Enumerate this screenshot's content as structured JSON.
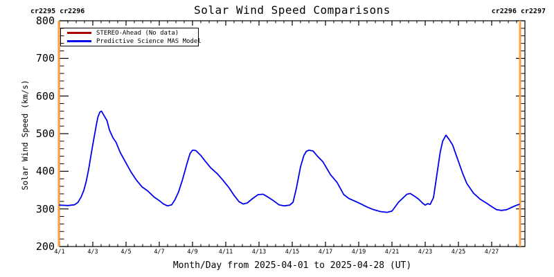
{
  "chart_data": {
    "type": "line",
    "title": "Solar Wind Speed Comparisons",
    "xlabel": "Month/Day from 2025-04-01 to 2025-04-28 (UT)",
    "ylabel": "Solar Wind Speed (km/s)",
    "xlim": [
      1,
      29
    ],
    "ylim": [
      200,
      800
    ],
    "grid": false,
    "legend_position": "top-left",
    "x_minor_step_days": 0.5,
    "y_minor_step": 20,
    "x_ticks": [
      {
        "day": 1,
        "label": "4/1"
      },
      {
        "day": 3,
        "label": "4/3"
      },
      {
        "day": 5,
        "label": "4/5"
      },
      {
        "day": 7,
        "label": "4/7"
      },
      {
        "day": 9,
        "label": "4/9"
      },
      {
        "day": 11,
        "label": "4/11"
      },
      {
        "day": 13,
        "label": "4/13"
      },
      {
        "day": 15,
        "label": "4/15"
      },
      {
        "day": 17,
        "label": "4/17"
      },
      {
        "day": 19,
        "label": "4/19"
      },
      {
        "day": 21,
        "label": "4/21"
      },
      {
        "day": 23,
        "label": "4/23"
      },
      {
        "day": 25,
        "label": "4/25"
      },
      {
        "day": 27,
        "label": "4/27"
      }
    ],
    "y_ticks": [
      {
        "value": 200,
        "label": "200"
      },
      {
        "value": 300,
        "label": "300"
      },
      {
        "value": 400,
        "label": "400"
      },
      {
        "value": 500,
        "label": "500"
      },
      {
        "value": 600,
        "label": "600"
      },
      {
        "value": 700,
        "label": "700"
      },
      {
        "value": 800,
        "label": "800"
      }
    ],
    "annotations": {
      "left_label": "cr2295 cr2296",
      "right_label": "cr2296 cr2297",
      "boundary_days": [
        0.96,
        28.71
      ],
      "boundary_color": "#ffa040"
    },
    "series": [
      {
        "name": "STEREO-Ahead (No data)",
        "color": "#aa0000",
        "points": []
      },
      {
        "name": "Predictive Science MAS Model",
        "color": "#0000ee",
        "points": [
          [
            1.0,
            310
          ],
          [
            1.5,
            309
          ],
          [
            1.9,
            311
          ],
          [
            2.1,
            317
          ],
          [
            2.3,
            332
          ],
          [
            2.45,
            348
          ],
          [
            2.6,
            372
          ],
          [
            2.75,
            405
          ],
          [
            2.9,
            445
          ],
          [
            3.05,
            483
          ],
          [
            3.2,
            520
          ],
          [
            3.3,
            543
          ],
          [
            3.42,
            557
          ],
          [
            3.52,
            560
          ],
          [
            3.65,
            550
          ],
          [
            3.85,
            535
          ],
          [
            4.0,
            510
          ],
          [
            4.2,
            490
          ],
          [
            4.4,
            477
          ],
          [
            4.65,
            450
          ],
          [
            4.95,
            426
          ],
          [
            5.3,
            398
          ],
          [
            5.6,
            378
          ],
          [
            5.95,
            359
          ],
          [
            6.3,
            348
          ],
          [
            6.7,
            331
          ],
          [
            7.0,
            322
          ],
          [
            7.25,
            313
          ],
          [
            7.5,
            308
          ],
          [
            7.75,
            311
          ],
          [
            7.95,
            325
          ],
          [
            8.15,
            344
          ],
          [
            8.4,
            378
          ],
          [
            8.65,
            418
          ],
          [
            8.85,
            447
          ],
          [
            9.0,
            456
          ],
          [
            9.2,
            455
          ],
          [
            9.5,
            442
          ],
          [
            9.8,
            425
          ],
          [
            10.1,
            409
          ],
          [
            10.5,
            393
          ],
          [
            10.8,
            378
          ],
          [
            11.2,
            356
          ],
          [
            11.5,
            336
          ],
          [
            11.8,
            319
          ],
          [
            12.05,
            313
          ],
          [
            12.3,
            316
          ],
          [
            12.6,
            327
          ],
          [
            12.95,
            338
          ],
          [
            13.25,
            339
          ],
          [
            13.55,
            331
          ],
          [
            13.9,
            321
          ],
          [
            14.2,
            311
          ],
          [
            14.5,
            308
          ],
          [
            14.85,
            310
          ],
          [
            15.05,
            318
          ],
          [
            15.25,
            355
          ],
          [
            15.5,
            412
          ],
          [
            15.7,
            442
          ],
          [
            15.85,
            453
          ],
          [
            16.0,
            456
          ],
          [
            16.25,
            454
          ],
          [
            16.5,
            441
          ],
          [
            16.85,
            425
          ],
          [
            17.3,
            391
          ],
          [
            17.7,
            370
          ],
          [
            18.1,
            338
          ],
          [
            18.4,
            328
          ],
          [
            18.8,
            320
          ],
          [
            19.1,
            314
          ],
          [
            19.5,
            305
          ],
          [
            19.9,
            298
          ],
          [
            20.3,
            293
          ],
          [
            20.7,
            291
          ],
          [
            21.0,
            294
          ],
          [
            21.4,
            318
          ],
          [
            21.9,
            339
          ],
          [
            22.1,
            341
          ],
          [
            22.35,
            334
          ],
          [
            22.6,
            326
          ],
          [
            22.85,
            315
          ],
          [
            23.0,
            310
          ],
          [
            23.15,
            314
          ],
          [
            23.3,
            312
          ],
          [
            23.5,
            330
          ],
          [
            23.7,
            390
          ],
          [
            23.9,
            450
          ],
          [
            24.05,
            480
          ],
          [
            24.25,
            496
          ],
          [
            24.45,
            484
          ],
          [
            24.65,
            470
          ],
          [
            24.85,
            445
          ],
          [
            25.05,
            420
          ],
          [
            25.25,
            395
          ],
          [
            25.5,
            368
          ],
          [
            25.9,
            342
          ],
          [
            26.3,
            326
          ],
          [
            26.7,
            315
          ],
          [
            27.0,
            306
          ],
          [
            27.3,
            298
          ],
          [
            27.6,
            296
          ],
          [
            27.9,
            298
          ],
          [
            28.2,
            304
          ],
          [
            28.45,
            309
          ],
          [
            28.65,
            312
          ]
        ]
      }
    ],
    "colors": {
      "axis": "#000000",
      "background": "#ffffff"
    }
  }
}
